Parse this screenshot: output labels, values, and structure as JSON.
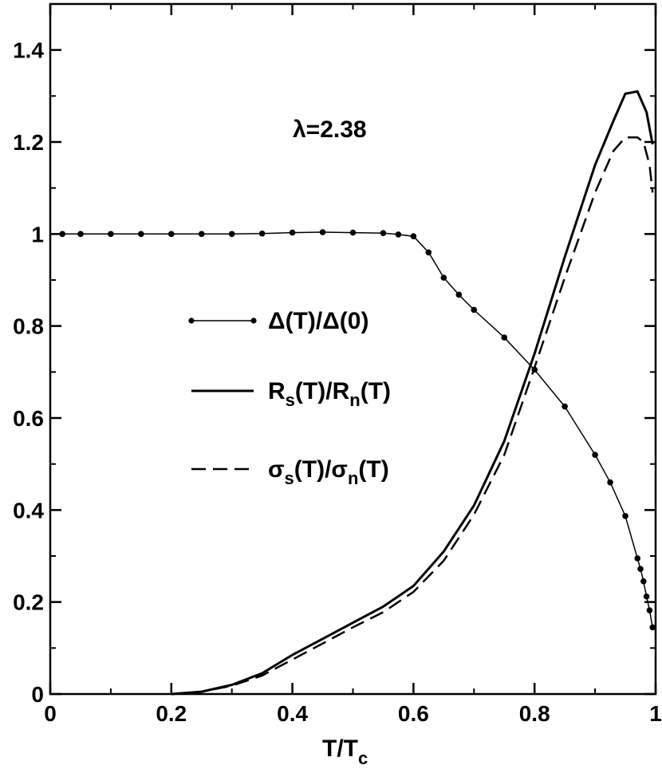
{
  "chart_data": {
    "type": "line",
    "title": "",
    "xlabel": "T/T",
    "xlabel_sub": "c",
    "ylabel": "",
    "xlim": [
      0,
      1
    ],
    "ylim": [
      0,
      1.5
    ],
    "x_ticks": [
      0,
      0.2,
      0.4,
      0.6,
      0.8,
      1
    ],
    "x_tick_labels": [
      "0",
      "0.2",
      "0.4",
      "0.6",
      "0.8",
      "1"
    ],
    "y_ticks": [
      0,
      0.2,
      0.4,
      0.6,
      0.8,
      1,
      1.2,
      1.4
    ],
    "y_tick_labels": [
      "0",
      "0.2",
      "0.4",
      "0.6",
      "0.8",
      "1",
      "1.2",
      "1.4"
    ],
    "grid": false,
    "legend_position": "center-left",
    "annotation": "λ=2.38",
    "series": [
      {
        "key": "gap",
        "legend": "Δ(T)/Δ(0)",
        "style": "solid-markers",
        "color": "#000000",
        "x": [
          0.02,
          0.05,
          0.1,
          0.15,
          0.2,
          0.25,
          0.3,
          0.35,
          0.4,
          0.45,
          0.5,
          0.55,
          0.575,
          0.6,
          0.625,
          0.65,
          0.675,
          0.7,
          0.75,
          0.8,
          0.85,
          0.9,
          0.925,
          0.95,
          0.97,
          0.975,
          0.98,
          0.985,
          0.99,
          0.995
        ],
        "y": [
          1.0,
          1.0,
          1.0,
          1.0,
          1.0,
          1.0,
          1.0,
          1.001,
          1.003,
          1.004,
          1.003,
          1.002,
          0.999,
          0.995,
          0.96,
          0.905,
          0.868,
          0.835,
          0.775,
          0.705,
          0.625,
          0.52,
          0.46,
          0.387,
          0.295,
          0.272,
          0.245,
          0.212,
          0.182,
          0.145
        ]
      },
      {
        "key": "rs",
        "legend_main": "R",
        "legend_sub1": "s",
        "legend_mid": "(T)/R",
        "legend_sub2": "n",
        "legend_end": "(T)",
        "style": "solid",
        "color": "#000000",
        "x": [
          0.2,
          0.25,
          0.3,
          0.35,
          0.4,
          0.45,
          0.5,
          0.55,
          0.6,
          0.65,
          0.7,
          0.75,
          0.8,
          0.85,
          0.9,
          0.93,
          0.95,
          0.97,
          0.985,
          0.995
        ],
        "y": [
          0.0,
          0.005,
          0.02,
          0.045,
          0.085,
          0.12,
          0.155,
          0.19,
          0.235,
          0.31,
          0.41,
          0.55,
          0.74,
          0.95,
          1.15,
          1.245,
          1.305,
          1.31,
          1.265,
          1.195
        ]
      },
      {
        "key": "sigma",
        "legend_main": "σ",
        "legend_sub1": "s",
        "legend_mid": "(T)/σ",
        "legend_sub2": "n",
        "legend_end": "(T)",
        "style": "dashed",
        "color": "#000000",
        "x": [
          0.2,
          0.25,
          0.3,
          0.35,
          0.4,
          0.45,
          0.5,
          0.55,
          0.6,
          0.65,
          0.7,
          0.75,
          0.8,
          0.85,
          0.9,
          0.93,
          0.95,
          0.97,
          0.98,
          0.99,
          0.995
        ],
        "y": [
          0.0,
          0.005,
          0.018,
          0.04,
          0.075,
          0.11,
          0.145,
          0.178,
          0.222,
          0.29,
          0.39,
          0.52,
          0.71,
          0.905,
          1.09,
          1.18,
          1.21,
          1.21,
          1.2,
          1.15,
          1.09
        ]
      }
    ]
  }
}
